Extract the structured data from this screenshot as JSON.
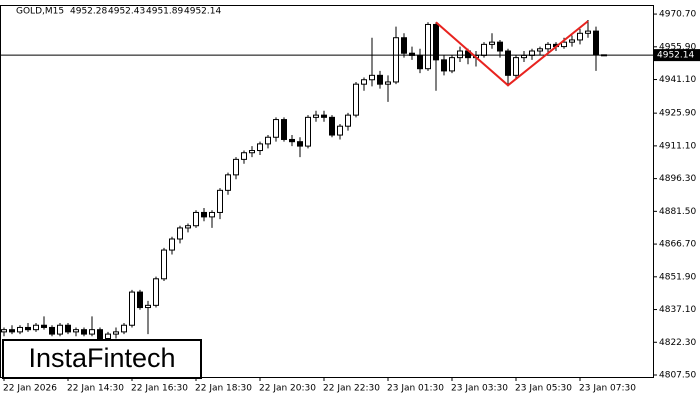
{
  "chart_data": {
    "type": "candlestick",
    "title": "GOLD,M15",
    "last_bar": {
      "open": 4952.28,
      "high": 4952.43,
      "low": 4951.89,
      "close": 4952.14
    },
    "watermark": "InstaFintech",
    "categories": [
      "22 Jan 2026",
      null,
      null,
      null,
      null,
      null,
      null,
      null,
      "22 Jan 14:30",
      null,
      null,
      null,
      null,
      null,
      null,
      null,
      "22 Jan 16:30",
      null,
      null,
      null,
      null,
      null,
      null,
      null,
      "22 Jan 18:30",
      null,
      null,
      null,
      null,
      null,
      null,
      null,
      "22 Jan 20:30",
      null,
      null,
      null,
      null,
      null,
      null,
      null,
      "22 Jan 22:30",
      null,
      null,
      null,
      null,
      null,
      null,
      null,
      "23 Jan 01:30",
      null,
      null,
      null,
      null,
      null,
      null,
      null,
      "23 Jan 03:30",
      null,
      null,
      null,
      null,
      null,
      null,
      null,
      "23 Jan 05:30",
      null,
      null,
      null,
      null,
      null,
      null,
      null,
      "23 Jan 07:30",
      null,
      null,
      null
    ],
    "open": [
      4827,
      4828,
      4827,
      4829,
      4828,
      4830,
      4829,
      4826,
      4830,
      4827,
      4828,
      4826,
      4828,
      4824,
      4826,
      4827,
      4830,
      4845,
      4838,
      4839,
      4851,
      4864,
      4869,
      4874,
      4875,
      4881,
      4879,
      4881,
      4891,
      4898,
      4905,
      4908,
      4909,
      4912,
      4915,
      4923,
      4914,
      4913,
      4911,
      4924,
      4925,
      4924,
      4916,
      4920,
      4925,
      4939,
      4941,
      4943,
      4939,
      4940,
      4960,
      4953,
      4952,
      4946,
      4966,
      4950,
      4945,
      4951,
      4954,
      4951,
      4952,
      4957,
      4958,
      4954,
      4943,
      4951,
      4952,
      4954,
      4955,
      4957,
      4956,
      4958,
      4959,
      4962,
      4963,
      4952.28
    ],
    "high": [
      4829,
      4830,
      4830,
      4831,
      4831,
      4834,
      4830,
      4831,
      4831,
      4829,
      4829,
      4834,
      4829,
      4827,
      4829,
      4831,
      4846,
      4846,
      4841,
      4852,
      4865,
      4870,
      4875,
      4876,
      4882,
      4883,
      4882,
      4892,
      4899,
      4906,
      4909,
      4911,
      4913,
      4916,
      4924,
      4924,
      4916,
      4915,
      4925,
      4927,
      4927,
      4925,
      4921,
      4926,
      4940,
      4942,
      4960,
      4945,
      4943,
      4965,
      4962,
      4956,
      4955,
      4967,
      4967,
      4952,
      4952,
      4956,
      4955,
      4954,
      4958,
      4962,
      4959,
      4955,
      4952,
      4954,
      4955,
      4956,
      4958,
      4958,
      4960,
      4961,
      4964,
      4968,
      4965,
      4952.43
    ],
    "low": [
      4825,
      4826,
      4826,
      4827,
      4827,
      4828,
      4825,
      4825,
      4826,
      4825,
      4825,
      4825,
      4822,
      4821,
      4824,
      4826,
      4829,
      4837,
      4826,
      4838,
      4850,
      4862,
      4867,
      4872,
      4874,
      4877,
      4874,
      4878,
      4889,
      4896,
      4903,
      4906,
      4907,
      4910,
      4913,
      4913,
      4911,
      4906,
      4910,
      4922,
      4922,
      4915,
      4914,
      4918,
      4924,
      4936,
      4938,
      4937,
      4931,
      4939,
      4951,
      4950,
      4944,
      4945,
      4936,
      4943,
      4944,
      4949,
      4948,
      4947,
      4951,
      4955,
      4951,
      4938,
      4941,
      4949,
      4950,
      4952,
      4953,
      4954,
      4955,
      4956,
      4957,
      4960,
      4945,
      4951.89
    ],
    "close": [
      4828,
      4827,
      4829,
      4828,
      4830,
      4829,
      4826,
      4830,
      4827,
      4828,
      4826,
      4828,
      4824,
      4826,
      4827,
      4830,
      4845,
      4838,
      4839,
      4851,
      4864,
      4869,
      4874,
      4875,
      4881,
      4879,
      4881,
      4891,
      4898,
      4905,
      4908,
      4909,
      4912,
      4915,
      4923,
      4914,
      4913,
      4911,
      4924,
      4925,
      4924,
      4916,
      4920,
      4925,
      4939,
      4941,
      4943,
      4939,
      4940,
      4960,
      4953,
      4952,
      4946,
      4966,
      4950,
      4945,
      4951,
      4954,
      4951,
      4952,
      4957,
      4958,
      4954,
      4943,
      4951,
      4952,
      4954,
      4955,
      4957,
      4956,
      4958,
      4959,
      4962,
      4963,
      4952.28,
      4952.14
    ],
    "ylim": [
      4806.6,
      4974.8
    ],
    "yticks": [
      {
        "value": 4970.7,
        "label": "4970.70"
      },
      {
        "value": 4955.9,
        "label": "4955.90"
      },
      {
        "value": 4941.1,
        "label": "4941.10"
      },
      {
        "value": 4925.9,
        "label": "4925.90"
      },
      {
        "value": 4911.1,
        "label": "4911.10"
      },
      {
        "value": 4896.3,
        "label": "4896.30"
      },
      {
        "value": 4881.5,
        "label": "4881.50"
      },
      {
        "value": 4866.7,
        "label": "4866.70"
      },
      {
        "value": 4851.9,
        "label": "4851.90"
      },
      {
        "value": 4837.1,
        "label": "4837.10"
      },
      {
        "value": 4822.3,
        "label": "4822.30"
      },
      {
        "value": 4807.5,
        "label": "4807.50"
      }
    ],
    "pattern": {
      "color": "#e8231f",
      "x": [
        54,
        63,
        73
      ],
      "values": [
        4967,
        4938.5,
        4967.5
      ]
    }
  }
}
